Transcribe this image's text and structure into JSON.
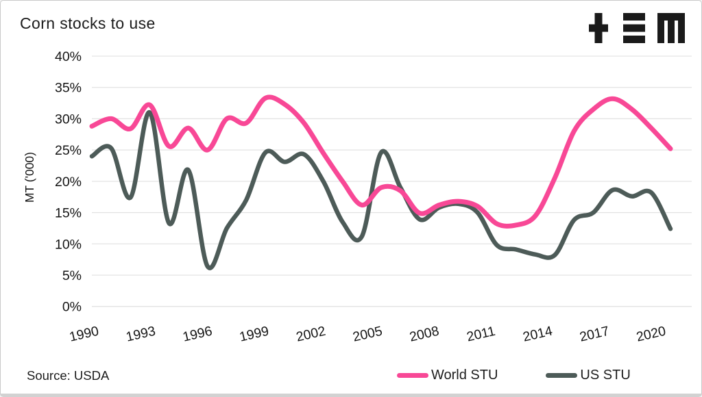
{
  "header": {
    "title": "Corn stocks to use",
    "logo": {
      "name": "tem-logo",
      "color": "#1a1a1a"
    }
  },
  "source": {
    "label": "Source: USDA"
  },
  "legend": [
    {
      "label": "World STU",
      "color": "#f84896"
    },
    {
      "label": "US STU",
      "color": "#4d5b58"
    }
  ],
  "chart_data": {
    "type": "line",
    "title": "Corn stocks to use",
    "ylabel": "MT ('000)",
    "ylim": [
      0,
      40
    ],
    "ytick_step": 5,
    "ytick_suffix": "%",
    "grid": "horizontal",
    "grid_color": "#e3e3e3",
    "legend_position": "bottom-right",
    "xticks": [
      1990,
      1993,
      1996,
      1999,
      2002,
      2005,
      2008,
      2011,
      2014,
      2017,
      2020
    ],
    "x": [
      1990,
      1991,
      1992,
      1993,
      1994,
      1995,
      1996,
      1997,
      1998,
      1999,
      2000,
      2001,
      2002,
      2003,
      2004,
      2005,
      2006,
      2007,
      2008,
      2009,
      2010,
      2011,
      2012,
      2013,
      2014,
      2015,
      2016,
      2017,
      2018,
      2019,
      2020
    ],
    "series": [
      {
        "name": "World STU",
        "color": "#f84896",
        "values": [
          28.8,
          30.0,
          28.4,
          32.2,
          25.6,
          28.5,
          25.0,
          30.0,
          29.3,
          33.3,
          32.3,
          29.3,
          24.5,
          20.0,
          16.2,
          19.0,
          18.5,
          14.9,
          16.2,
          16.8,
          16.0,
          13.2,
          13.0,
          14.5,
          20.5,
          28.0,
          31.5,
          33.2,
          31.5,
          28.5,
          25.2
        ]
      },
      {
        "name": "US STU",
        "color": "#4d5b58",
        "values": [
          24.0,
          25.3,
          17.4,
          31.0,
          13.3,
          21.8,
          6.4,
          12.5,
          17.0,
          24.6,
          23.1,
          24.3,
          20.0,
          13.5,
          11.2,
          24.6,
          19.0,
          13.9,
          15.8,
          16.4,
          15.0,
          9.8,
          9.1,
          8.3,
          8.2,
          13.8,
          15.0,
          18.6,
          17.6,
          18.2,
          12.4
        ]
      }
    ]
  }
}
